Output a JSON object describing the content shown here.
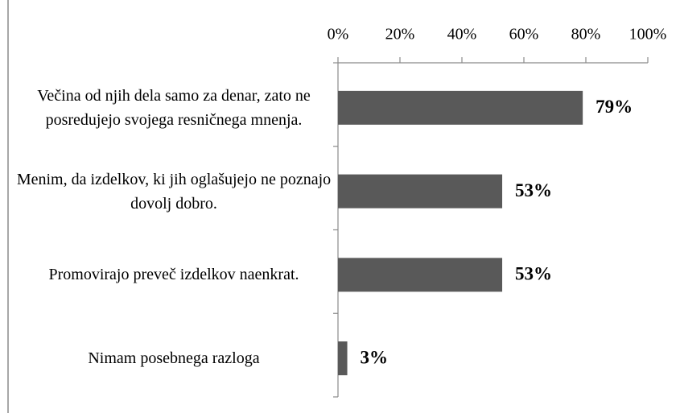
{
  "chart_data": {
    "type": "bar",
    "orientation": "horizontal",
    "categories": [
      "Večina od njih dela samo za denar, zato ne posredujejo svojega resničnega mnenja.",
      "Menim, da izdelkov, ki jih oglašujejo ne poznajo dovolj dobro.",
      "Promovirajo preveč izdelkov naenkrat.",
      "Nimam posebnega razloga"
    ],
    "values": [
      79,
      53,
      53,
      3
    ],
    "value_labels": [
      "79%",
      "53%",
      "53%",
      "3%"
    ],
    "color": "#595959",
    "xlim": [
      0,
      100
    ],
    "xticks": [
      {
        "value": 0,
        "label": "0%"
      },
      {
        "value": 20,
        "label": "20%"
      },
      {
        "value": 40,
        "label": "40%"
      },
      {
        "value": 60,
        "label": "60%"
      },
      {
        "value": 80,
        "label": "80%"
      },
      {
        "value": 100,
        "label": "100%"
      }
    ]
  }
}
